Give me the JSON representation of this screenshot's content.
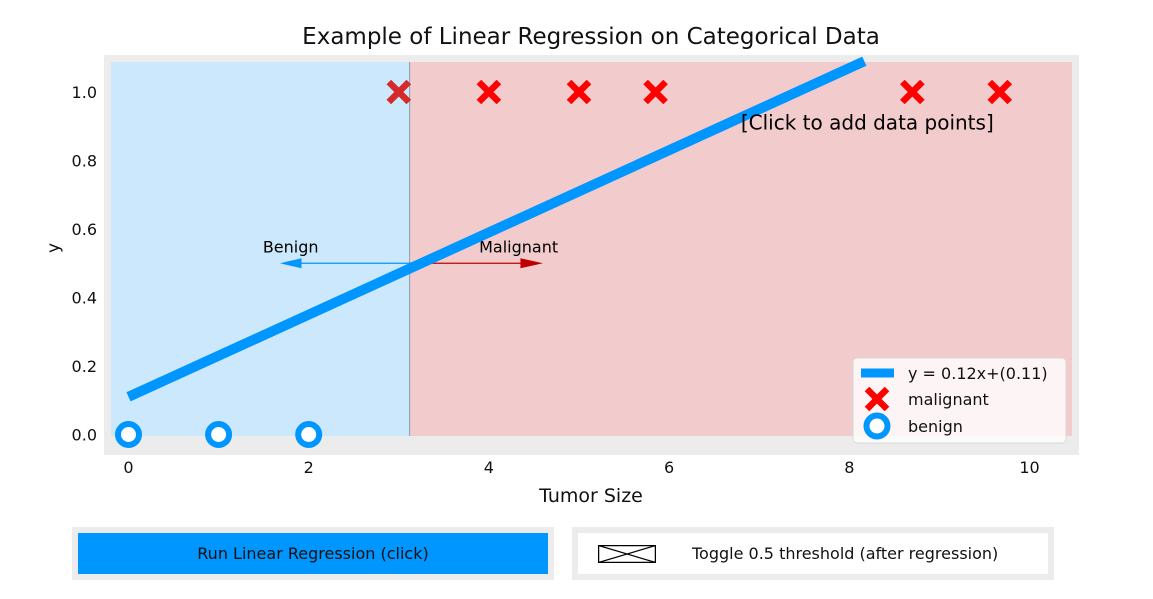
{
  "chart_data": {
    "type": "scatter",
    "title": "Example of Linear Regression on Categorical Data",
    "xlabel": "Tumor Size",
    "ylabel": "y",
    "xlim": [
      -0.2,
      10.5
    ],
    "ylim": [
      -0.05,
      1.09
    ],
    "xticks": [
      0,
      2,
      4,
      6,
      8,
      10
    ],
    "yticks": [
      0.0,
      0.2,
      0.4,
      0.6,
      0.8,
      1.0
    ],
    "xtick_labels": [
      "0",
      "2",
      "4",
      "6",
      "8",
      "10"
    ],
    "ytick_labels": [
      "0.0",
      "0.2",
      "0.4",
      "0.6",
      "0.8",
      "1.0"
    ],
    "series": [
      {
        "name": "malignant",
        "marker": "x",
        "x": [
          3,
          4,
          5,
          5.85,
          8.7,
          9.67
        ],
        "y": [
          1,
          1,
          1,
          1,
          1,
          1
        ]
      },
      {
        "name": "benign",
        "marker": "o",
        "x": [
          0,
          1,
          2
        ],
        "y": [
          0,
          0,
          0
        ]
      }
    ],
    "fit_line": {
      "name": "y = 0.12x+(0.11)",
      "slope": 0.12,
      "intercept": 0.11
    },
    "threshold_x": 3.12,
    "regions": {
      "benign_color": "#cce8fc",
      "malignant_color": "#f2cbcd"
    },
    "annotations": {
      "benign": "Benign",
      "malignant": "Malignant",
      "click_hint": "[Click to add data points]"
    },
    "legend_location": "lower-right",
    "grid": false
  },
  "colors": {
    "dl_blue": "#0096ff",
    "dl_red": "#ff0000",
    "dark_red": "#c00000",
    "frame": "#ececec"
  },
  "buttons": {
    "run_label": "Run Linear Regression (click)",
    "toggle_label": "Toggle 0.5 threshold (after regression)"
  }
}
